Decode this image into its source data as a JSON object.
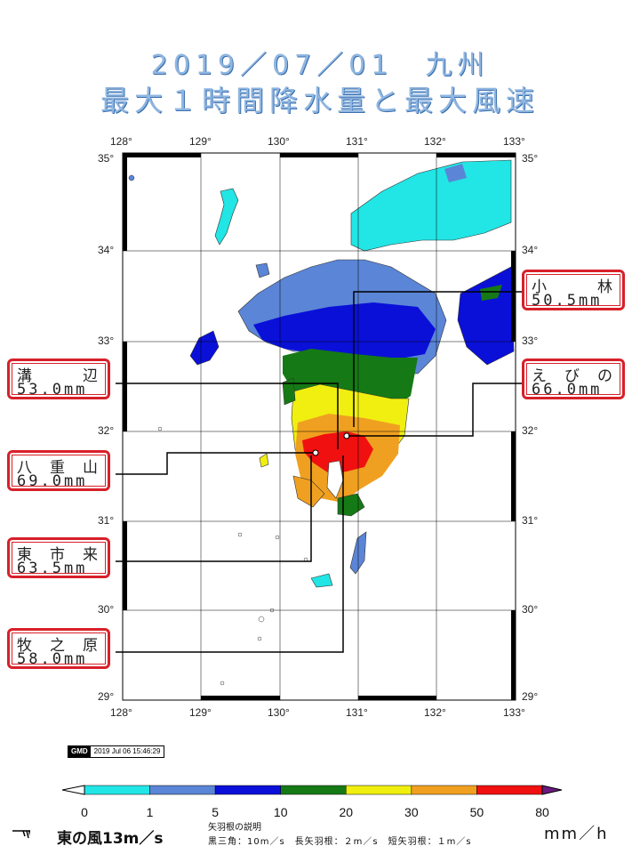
{
  "title": {
    "line1": "2019／07／01　九州",
    "line2": "最大１時間降水量と最大風速"
  },
  "map": {
    "lon_ticks": [
      "128°",
      "129°",
      "130°",
      "131°",
      "132°",
      "133°"
    ],
    "lat_ticks": [
      "35°",
      "34°",
      "33°",
      "32°",
      "31°",
      "30°",
      "29°"
    ],
    "lon_range": [
      128,
      133
    ],
    "lat_range": [
      29,
      35
    ],
    "sea_color": "#ffffff",
    "land_color": "#ffffff"
  },
  "stations": [
    {
      "name": "小　林",
      "value": "50.5mm",
      "lon": 130.95,
      "lat": 32.0
    },
    {
      "name": "えびの",
      "value": "66.0mm",
      "lon": 130.82,
      "lat": 31.98
    },
    {
      "name": "溝　辺",
      "value": "53.0mm",
      "lon": 130.7,
      "lat": 31.82
    },
    {
      "name": "八重山",
      "value": "69.0mm",
      "lon": 130.42,
      "lat": 31.78
    },
    {
      "name": "東市来",
      "value": "63.5mm",
      "lon": 130.35,
      "lat": 31.65
    },
    {
      "name": "牧之原",
      "value": "58.0mm",
      "lon": 130.8,
      "lat": 31.67
    }
  ],
  "stamp": {
    "logo": "GMD",
    "datetime": "2019 Jul 06 15:46:29"
  },
  "colorbar": {
    "ticks": [
      "0",
      "1",
      "5",
      "10",
      "20",
      "30",
      "50",
      "80"
    ],
    "colors": [
      "#22e5e5",
      "#5b85d6",
      "#0a10d8",
      "#157a15",
      "#f0ef10",
      "#f0a020",
      "#f01010"
    ],
    "overflow_color": "#6a1a80",
    "unit": "mm／h"
  },
  "wind_legend": {
    "label": "東の風13m／s",
    "title": "矢羽根の説明",
    "description": "黒三角：10m／s　長矢羽根：２m／s　短矢羽根：１m／s"
  }
}
